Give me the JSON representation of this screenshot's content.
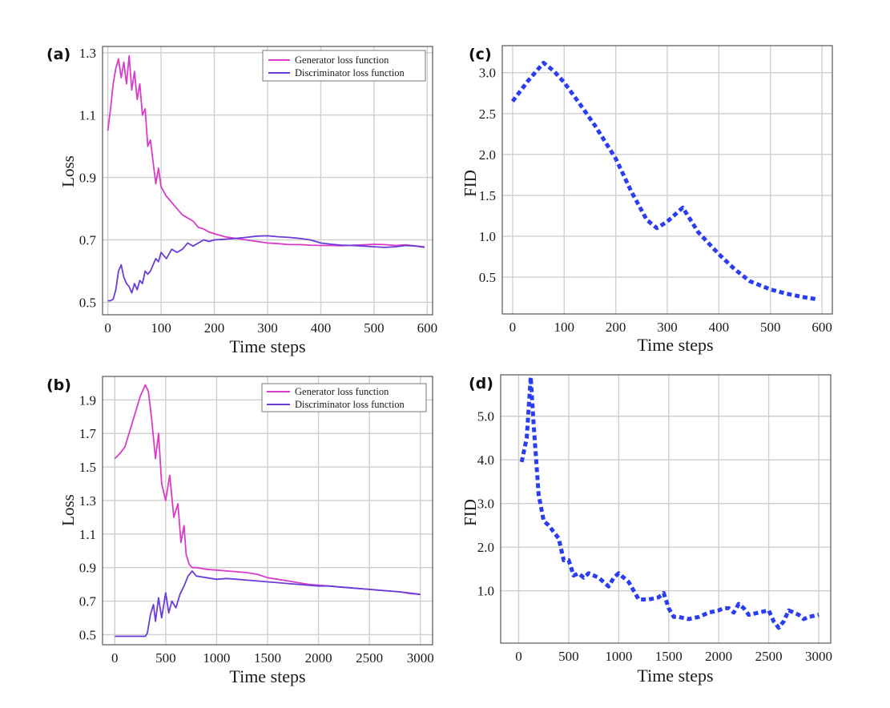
{
  "figure": {
    "colors": {
      "generator": "#d83cc8",
      "discriminator": "#6a3cd8",
      "fid": "#2b3df0"
    }
  },
  "chart_data": [
    {
      "id": "a",
      "panel_label": "(a)",
      "type": "line",
      "xlabel": "Time steps",
      "ylabel": "Loss",
      "xlim": [
        -10,
        610
      ],
      "ylim": [
        0.46,
        1.32
      ],
      "xticks": [
        "0",
        "100",
        "200",
        "300",
        "400",
        "500",
        "600"
      ],
      "yticks": [
        "0.5",
        "0.7",
        "0.9",
        "1.1",
        "1.3"
      ],
      "grid": true,
      "legend": "top-right",
      "series": [
        {
          "name": "Generator loss function",
          "x": [
            0,
            5,
            10,
            15,
            20,
            25,
            30,
            35,
            40,
            45,
            50,
            55,
            60,
            65,
            70,
            75,
            80,
            85,
            90,
            95,
            100,
            110,
            120,
            130,
            140,
            150,
            160,
            170,
            180,
            190,
            200,
            220,
            240,
            260,
            280,
            300,
            320,
            340,
            360,
            380,
            400,
            420,
            440,
            460,
            480,
            500,
            520,
            540,
            560,
            580,
            595
          ],
          "values": [
            1.05,
            1.12,
            1.2,
            1.25,
            1.28,
            1.22,
            1.27,
            1.2,
            1.29,
            1.18,
            1.24,
            1.15,
            1.2,
            1.1,
            1.12,
            1.0,
            1.02,
            0.95,
            0.88,
            0.93,
            0.87,
            0.84,
            0.82,
            0.8,
            0.78,
            0.77,
            0.76,
            0.74,
            0.735,
            0.725,
            0.72,
            0.71,
            0.705,
            0.7,
            0.695,
            0.69,
            0.688,
            0.685,
            0.685,
            0.683,
            0.682,
            0.682,
            0.681,
            0.683,
            0.684,
            0.686,
            0.685,
            0.682,
            0.684,
            0.68,
            0.678
          ]
        },
        {
          "name": "Discriminator loss function",
          "x": [
            0,
            5,
            10,
            15,
            20,
            25,
            30,
            35,
            40,
            45,
            50,
            55,
            60,
            65,
            70,
            75,
            80,
            85,
            90,
            95,
            100,
            110,
            120,
            130,
            140,
            150,
            160,
            170,
            180,
            190,
            200,
            220,
            240,
            260,
            280,
            300,
            320,
            340,
            360,
            380,
            400,
            420,
            440,
            460,
            480,
            500,
            520,
            540,
            560,
            580,
            595
          ],
          "values": [
            0.505,
            0.505,
            0.51,
            0.54,
            0.6,
            0.62,
            0.58,
            0.56,
            0.55,
            0.53,
            0.56,
            0.54,
            0.57,
            0.56,
            0.6,
            0.59,
            0.6,
            0.62,
            0.64,
            0.63,
            0.66,
            0.64,
            0.67,
            0.66,
            0.67,
            0.69,
            0.68,
            0.69,
            0.7,
            0.695,
            0.7,
            0.702,
            0.705,
            0.708,
            0.712,
            0.713,
            0.71,
            0.708,
            0.705,
            0.7,
            0.69,
            0.686,
            0.683,
            0.682,
            0.68,
            0.678,
            0.676,
            0.678,
            0.682,
            0.68,
            0.676
          ]
        }
      ]
    },
    {
      "id": "b",
      "panel_label": "(b)",
      "type": "line",
      "xlabel": "Time steps",
      "ylabel": "Loss",
      "xlim": [
        -120,
        3120
      ],
      "ylim": [
        0.44,
        2.04
      ],
      "xticks": [
        "0",
        "500",
        "1000",
        "1500",
        "2000",
        "2500",
        "3000"
      ],
      "yticks": [
        "0.5",
        "0.7",
        "0.9",
        "1.1",
        "1.3",
        "1.5",
        "1.7",
        "1.9"
      ],
      "grid": true,
      "legend": "top-right",
      "series": [
        {
          "name": "Generator loss function",
          "x": [
            0,
            50,
            100,
            150,
            200,
            250,
            300,
            330,
            360,
            400,
            430,
            460,
            500,
            540,
            580,
            620,
            650,
            680,
            700,
            730,
            760,
            800,
            900,
            1000,
            1100,
            1200,
            1300,
            1400,
            1500,
            1600,
            1700,
            1800,
            1900,
            2000,
            2100,
            2200,
            2300,
            2400,
            2500,
            2600,
            2700,
            2800,
            2900,
            3000
          ],
          "values": [
            1.55,
            1.58,
            1.62,
            1.72,
            1.82,
            1.92,
            1.99,
            1.95,
            1.8,
            1.55,
            1.7,
            1.4,
            1.3,
            1.45,
            1.2,
            1.28,
            1.05,
            1.15,
            0.98,
            0.92,
            0.9,
            0.9,
            0.89,
            0.885,
            0.88,
            0.875,
            0.87,
            0.86,
            0.84,
            0.83,
            0.82,
            0.81,
            0.8,
            0.795,
            0.79,
            0.785,
            0.78,
            0.775,
            0.77,
            0.765,
            0.76,
            0.755,
            0.745,
            0.74
          ]
        },
        {
          "name": "Discriminator loss function",
          "x": [
            0,
            100,
            200,
            300,
            320,
            350,
            380,
            400,
            430,
            460,
            500,
            530,
            560,
            600,
            640,
            680,
            720,
            760,
            800,
            900,
            1000,
            1100,
            1200,
            1300,
            1400,
            1500,
            1600,
            1700,
            1800,
            1900,
            2000,
            2100,
            2200,
            2300,
            2400,
            2500,
            2600,
            2700,
            2800,
            2900,
            3000
          ],
          "values": [
            0.49,
            0.49,
            0.49,
            0.49,
            0.51,
            0.62,
            0.68,
            0.58,
            0.72,
            0.6,
            0.75,
            0.63,
            0.7,
            0.66,
            0.74,
            0.79,
            0.85,
            0.88,
            0.85,
            0.84,
            0.83,
            0.835,
            0.83,
            0.825,
            0.82,
            0.815,
            0.81,
            0.805,
            0.8,
            0.795,
            0.79,
            0.79,
            0.785,
            0.78,
            0.775,
            0.77,
            0.765,
            0.76,
            0.755,
            0.748,
            0.74
          ]
        }
      ]
    },
    {
      "id": "c",
      "panel_label": "(c)",
      "type": "line",
      "xlabel": "Time steps",
      "ylabel": "FID",
      "xlim": [
        -20,
        620
      ],
      "ylim": [
        0.05,
        3.33
      ],
      "xticks": [
        "0",
        "100",
        "200",
        "300",
        "400",
        "500",
        "600"
      ],
      "yticks": [
        "0.5",
        "1.0",
        "1.5",
        "2.0",
        "2.5",
        "3.0"
      ],
      "grid": true,
      "series": [
        {
          "name": "FID",
          "x": [
            0,
            30,
            60,
            80,
            100,
            130,
            160,
            200,
            230,
            260,
            280,
            300,
            330,
            360,
            400,
            430,
            460,
            500,
            530,
            560,
            590
          ],
          "values": [
            2.65,
            2.9,
            3.12,
            3.02,
            2.88,
            2.62,
            2.35,
            1.95,
            1.55,
            1.2,
            1.1,
            1.18,
            1.35,
            1.05,
            0.78,
            0.6,
            0.45,
            0.35,
            0.3,
            0.26,
            0.23
          ]
        }
      ]
    },
    {
      "id": "d",
      "panel_label": "(d)",
      "type": "line",
      "xlabel": "Time steps",
      "ylabel": "FID",
      "xlim": [
        -180,
        3120
      ],
      "ylim": [
        -0.2,
        5.95
      ],
      "xticks": [
        "0",
        "500",
        "1000",
        "1500",
        "2000",
        "2500",
        "3000"
      ],
      "yticks": [
        "1.0",
        "2.0",
        "3.0",
        "4.0",
        "5.0"
      ],
      "grid": true,
      "series": [
        {
          "name": "FID",
          "x": [
            30,
            80,
            120,
            150,
            200,
            250,
            300,
            400,
            450,
            500,
            550,
            600,
            650,
            700,
            800,
            900,
            950,
            1000,
            1050,
            1100,
            1200,
            1300,
            1400,
            1450,
            1500,
            1550,
            1600,
            1700,
            1800,
            1900,
            2000,
            2050,
            2100,
            2150,
            2200,
            2250,
            2300,
            2400,
            2500,
            2550,
            2600,
            2650,
            2700,
            2800,
            2850,
            2900,
            3000
          ],
          "values": [
            3.95,
            4.5,
            5.9,
            4.8,
            3.2,
            2.6,
            2.5,
            2.2,
            1.7,
            1.7,
            1.35,
            1.4,
            1.3,
            1.4,
            1.3,
            1.1,
            1.3,
            1.4,
            1.3,
            1.2,
            0.8,
            0.8,
            0.85,
            0.95,
            0.6,
            0.4,
            0.4,
            0.35,
            0.4,
            0.5,
            0.55,
            0.6,
            0.6,
            0.5,
            0.7,
            0.6,
            0.45,
            0.5,
            0.55,
            0.3,
            0.15,
            0.3,
            0.55,
            0.45,
            0.35,
            0.4,
            0.45
          ]
        }
      ]
    }
  ]
}
